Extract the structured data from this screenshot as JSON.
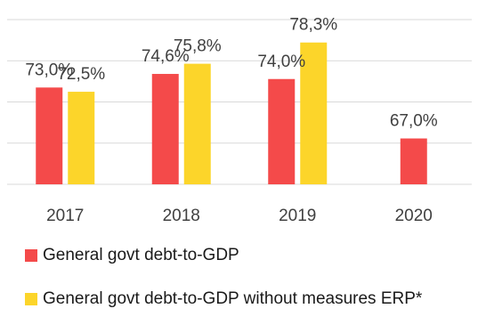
{
  "chart_data": {
    "type": "bar",
    "categories": [
      "2017",
      "2018",
      "2019",
      "2020"
    ],
    "series": [
      {
        "name": "General govt debt-to-GDP",
        "color": "#f44a4a",
        "values": [
          73.0,
          74.6,
          74.0,
          67.0
        ],
        "labels": [
          "73,0%",
          "74,6%",
          "74,0%",
          "67,0%"
        ]
      },
      {
        "name": "General govt debt-to-GDP without measures ERP*",
        "color": "#fcd52a",
        "values": [
          72.5,
          75.8,
          78.3,
          null
        ],
        "labels": [
          "72,5%",
          "75,8%",
          "78,3%",
          ""
        ]
      }
    ],
    "ylim": [
      61.6,
      81.0
    ],
    "grid": true,
    "legend": "bottom"
  }
}
